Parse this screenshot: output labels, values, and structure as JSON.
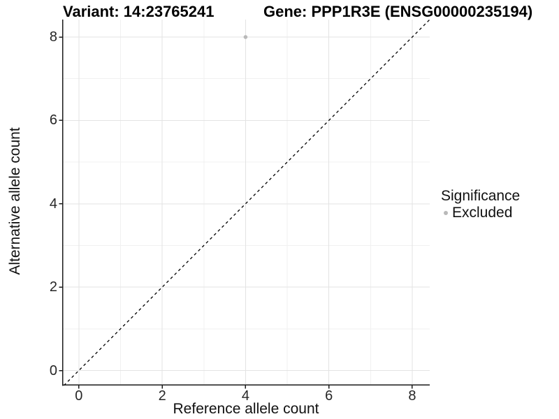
{
  "header": {
    "variant_title": "Variant: 14:23765241",
    "gene_title": "Gene: PPP1R3E (ENSG00000235194)"
  },
  "chart_data": {
    "type": "scatter",
    "xlabel": "Reference allele count",
    "ylabel": "Alternative allele count",
    "x_ticks": [
      0,
      2,
      4,
      6,
      8
    ],
    "y_ticks": [
      0,
      2,
      4,
      6,
      8
    ],
    "x_minor_ticks": [
      1,
      3,
      5,
      7
    ],
    "y_minor_ticks": [
      1,
      3,
      5,
      7
    ],
    "xlim": [
      -0.4,
      8.42
    ],
    "ylim": [
      -0.36,
      8.42
    ],
    "grid": true,
    "identity_line": {
      "style": "dashed",
      "equation": "y = x"
    },
    "points": [
      {
        "x": 4,
        "y": 8,
        "series": "Excluded"
      }
    ],
    "legend": {
      "title": "Significance",
      "position": "right",
      "entries": [
        {
          "label": "Excluded",
          "color": "#b9b9b9"
        }
      ]
    },
    "colors": {
      "point": "#b9b9b9",
      "grid_major": "#e3e3e3",
      "grid_minor": "#f1f1f1",
      "axis": "#1a1a1a",
      "dashed_line": "#000000"
    }
  }
}
